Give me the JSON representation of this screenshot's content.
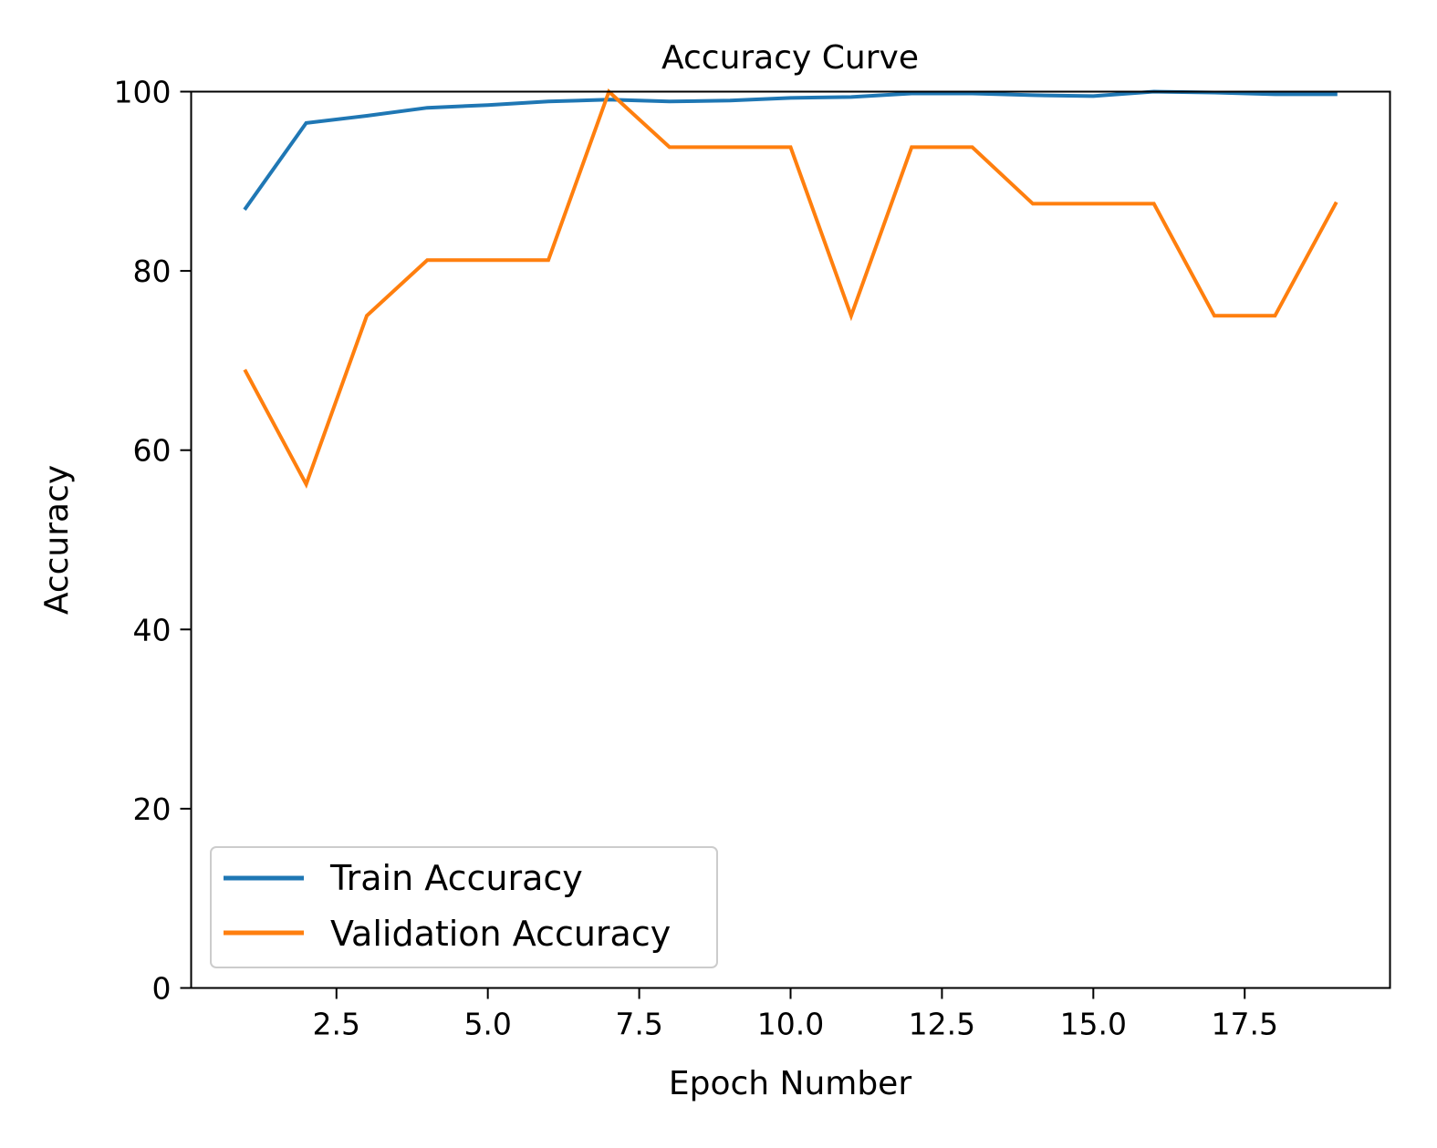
{
  "chart_data": {
    "type": "line",
    "title": "Accuracy Curve",
    "xlabel": "Epoch Number",
    "ylabel": "Accuracy",
    "xlim": [
      0.1,
      19.9
    ],
    "ylim": [
      0,
      100
    ],
    "xticks": [
      2.5,
      5.0,
      7.5,
      10.0,
      12.5,
      15.0,
      17.5
    ],
    "xtick_labels": [
      "2.5",
      "5.0",
      "7.5",
      "10.0",
      "12.5",
      "15.0",
      "17.5"
    ],
    "yticks": [
      0,
      20,
      40,
      60,
      80,
      100
    ],
    "ytick_labels": [
      "0",
      "20",
      "40",
      "60",
      "80",
      "100"
    ],
    "grid": false,
    "legend_position": "lower-left",
    "x": [
      1,
      2,
      3,
      4,
      5,
      6,
      7,
      8,
      9,
      10,
      11,
      12,
      13,
      14,
      15,
      16,
      17,
      18,
      19
    ],
    "series": [
      {
        "name": "Train Accuracy",
        "color": "#1f77b4",
        "values": [
          87.0,
          96.5,
          97.3,
          98.2,
          98.5,
          98.9,
          99.1,
          98.9,
          99.0,
          99.3,
          99.4,
          99.8,
          99.8,
          99.6,
          99.5,
          100.0,
          99.9,
          99.7,
          99.7
        ]
      },
      {
        "name": "Validation Accuracy",
        "color": "#ff7f0e",
        "values": [
          68.8,
          56.2,
          75.0,
          81.2,
          81.2,
          81.2,
          100.0,
          93.8,
          93.8,
          93.8,
          75.0,
          93.8,
          93.8,
          87.5,
          87.5,
          87.5,
          75.0,
          75.0,
          87.5
        ]
      }
    ]
  }
}
